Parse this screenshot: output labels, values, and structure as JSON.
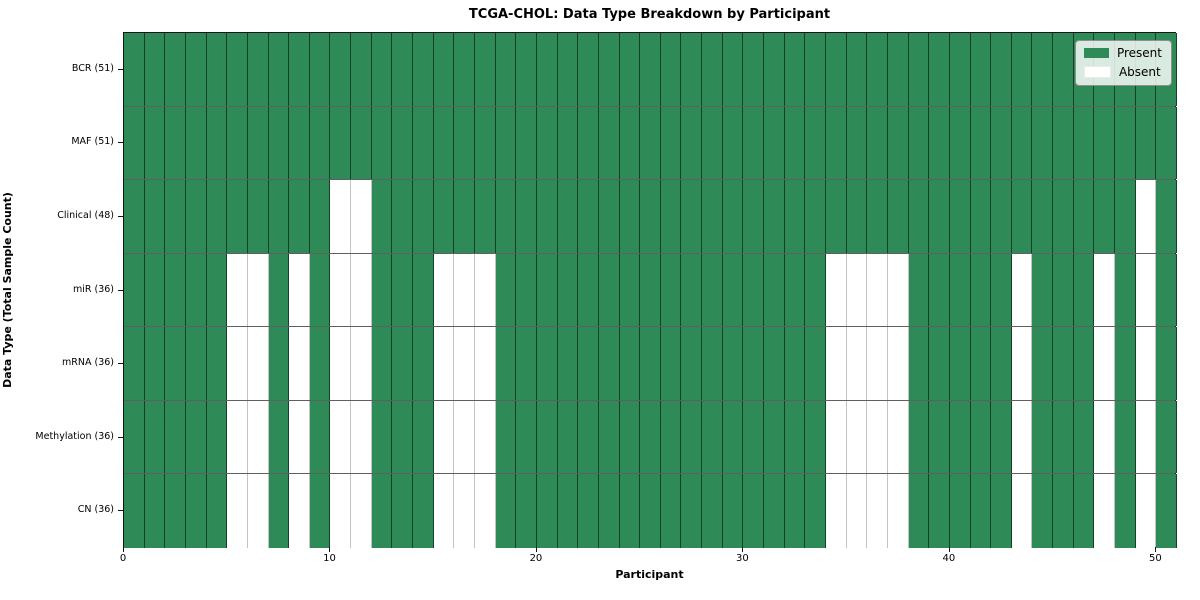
{
  "chart_data": {
    "type": "heatmap",
    "title": "TCGA-CHOL: Data Type Breakdown by Participant",
    "xlabel": "Participant",
    "ylabel": "Data Type (Total Sample Count)",
    "n_participants": 51,
    "xlim": [
      0,
      51
    ],
    "x_ticks": [
      0,
      10,
      20,
      30,
      40,
      50
    ],
    "grid": true,
    "legend_position": "upper right",
    "colors": {
      "present": "#2e8b57",
      "absent": "#ffffff"
    },
    "legend": [
      {
        "label": "Present",
        "color": "#2e8b57"
      },
      {
        "label": "Absent",
        "color": "#ffffff"
      }
    ],
    "rows": [
      {
        "label": "BCR (51)",
        "data_type": "BCR",
        "total": 51,
        "absent_participants": []
      },
      {
        "label": "MAF (51)",
        "data_type": "MAF",
        "total": 51,
        "absent_participants": []
      },
      {
        "label": "Clinical (48)",
        "data_type": "Clinical",
        "total": 48,
        "absent_participants": [
          10,
          11,
          49
        ]
      },
      {
        "label": "miR (36)",
        "data_type": "miR",
        "total": 36,
        "absent_participants": [
          5,
          6,
          8,
          10,
          11,
          15,
          16,
          17,
          34,
          35,
          36,
          37,
          43,
          47,
          49
        ]
      },
      {
        "label": "mRNA (36)",
        "data_type": "mRNA",
        "total": 36,
        "absent_participants": [
          5,
          6,
          8,
          10,
          11,
          15,
          16,
          17,
          34,
          35,
          36,
          37,
          43,
          47,
          49
        ]
      },
      {
        "label": "Methylation (36)",
        "data_type": "Methylation",
        "total": 36,
        "absent_participants": [
          5,
          6,
          8,
          10,
          11,
          15,
          16,
          17,
          34,
          35,
          36,
          37,
          43,
          47,
          49
        ]
      },
      {
        "label": "CN (36)",
        "data_type": "CN",
        "total": 36,
        "absent_participants": [
          5,
          6,
          8,
          10,
          11,
          15,
          16,
          17,
          34,
          35,
          36,
          37,
          43,
          47,
          49
        ]
      }
    ]
  }
}
